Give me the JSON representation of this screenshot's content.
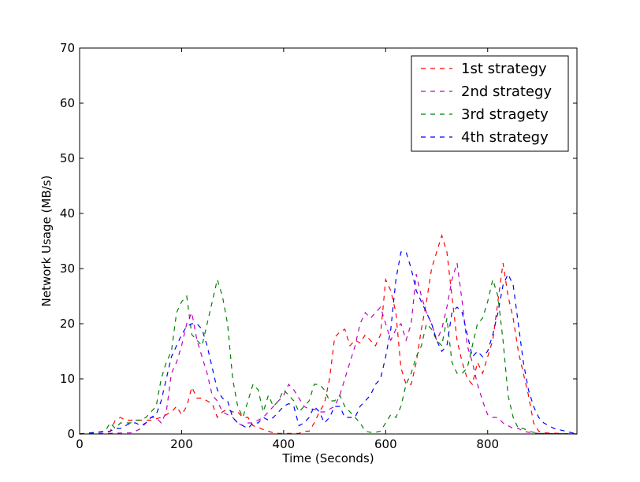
{
  "chart_data": {
    "type": "line",
    "xlabel": "Time (Seconds)",
    "ylabel": "Network Usage (MB/s)",
    "xlim": [
      0,
      975
    ],
    "ylim": [
      0,
      70
    ],
    "xticks": [
      0,
      200,
      400,
      600,
      800
    ],
    "yticks": [
      0,
      10,
      20,
      30,
      40,
      50,
      60,
      70
    ],
    "grid": false,
    "legend_position": "top-right",
    "line_style": "dashed",
    "series": [
      {
        "name": "1st strategy",
        "color": "#ff0000",
        "x": [
          0,
          60,
          70,
          80,
          90,
          100,
          120,
          140,
          160,
          180,
          190,
          200,
          210,
          220,
          230,
          240,
          250,
          260,
          270,
          280,
          290,
          300,
          310,
          320,
          330,
          340,
          350,
          360,
          370,
          380,
          390,
          400,
          410,
          420,
          430,
          440,
          450,
          460,
          470,
          480,
          490,
          500,
          510,
          520,
          530,
          540,
          550,
          560,
          570,
          580,
          590,
          600,
          610,
          620,
          630,
          640,
          650,
          660,
          670,
          680,
          690,
          700,
          710,
          720,
          730,
          740,
          750,
          760,
          770,
          780,
          790,
          800,
          810,
          820,
          830,
          840,
          850,
          860,
          870,
          880,
          890,
          900,
          910,
          975
        ],
        "y": [
          0,
          0.5,
          2.5,
          3,
          2.5,
          2.5,
          2.5,
          2.5,
          3,
          4,
          5,
          3.5,
          5,
          8.5,
          6.5,
          6.5,
          6,
          5.5,
          3,
          4,
          4.5,
          4,
          4,
          3,
          3,
          1.5,
          1.2,
          0.8,
          0.5,
          0.2,
          0.1,
          0.1,
          0.1,
          0.1,
          0.1,
          0.5,
          0.5,
          2,
          4,
          5.5,
          10,
          17.5,
          18.5,
          19,
          16,
          17,
          16.5,
          18,
          17,
          16,
          18,
          28,
          26,
          22,
          12,
          9,
          9,
          13,
          19,
          24,
          30,
          33,
          36,
          33,
          25,
          17,
          13,
          10,
          9,
          13,
          11,
          14,
          17,
          24,
          31,
          25,
          21,
          15,
          11,
          7,
          2,
          0.5,
          0.2,
          0
        ]
      },
      {
        "name": "2nd strategy",
        "color": "#bf00bf",
        "x": [
          0,
          100,
          110,
          120,
          130,
          140,
          150,
          160,
          170,
          180,
          190,
          200,
          210,
          220,
          230,
          240,
          250,
          260,
          270,
          280,
          290,
          300,
          310,
          320,
          330,
          340,
          350,
          360,
          370,
          380,
          390,
          400,
          410,
          420,
          430,
          440,
          450,
          460,
          470,
          480,
          490,
          500,
          510,
          520,
          530,
          540,
          550,
          560,
          570,
          580,
          590,
          600,
          610,
          620,
          630,
          640,
          650,
          660,
          670,
          680,
          690,
          700,
          710,
          720,
          730,
          740,
          750,
          760,
          770,
          780,
          790,
          800,
          810,
          820,
          830,
          840,
          850,
          860,
          870,
          880,
          890,
          900,
          975
        ],
        "y": [
          0,
          0.2,
          0.5,
          1,
          2,
          3,
          3,
          2,
          4,
          11,
          13,
          16,
          20,
          22,
          17,
          14,
          11,
          7,
          6,
          4,
          3.5,
          3,
          2,
          1.5,
          2,
          2,
          2.5,
          3,
          4,
          5,
          6,
          7,
          9,
          8,
          6.5,
          5,
          4.5,
          4.5,
          4,
          4,
          4.5,
          5,
          7,
          10,
          13,
          16,
          20,
          22,
          21,
          22,
          23,
          20,
          17,
          19,
          20,
          17,
          20,
          29,
          25,
          22,
          20,
          17,
          19,
          23,
          28,
          31,
          24,
          16,
          13,
          9,
          6,
          3.5,
          3,
          3,
          2,
          1.5,
          1,
          1,
          0.5,
          0.3,
          0.2,
          0.1,
          0
        ]
      },
      {
        "name": "3rd stragety",
        "color": "#007f00",
        "x": [
          0,
          50,
          60,
          70,
          80,
          90,
          100,
          110,
          120,
          130,
          140,
          150,
          160,
          170,
          180,
          190,
          200,
          210,
          220,
          230,
          240,
          250,
          260,
          270,
          280,
          290,
          300,
          310,
          320,
          330,
          340,
          350,
          360,
          370,
          380,
          390,
          400,
          410,
          420,
          430,
          440,
          450,
          460,
          470,
          480,
          490,
          500,
          510,
          520,
          530,
          540,
          550,
          560,
          570,
          580,
          590,
          600,
          610,
          620,
          630,
          640,
          650,
          660,
          670,
          680,
          690,
          700,
          710,
          720,
          730,
          740,
          750,
          760,
          770,
          780,
          790,
          800,
          810,
          820,
          830,
          840,
          850,
          860,
          870,
          880,
          890,
          900,
          975
        ],
        "y": [
          0,
          0.5,
          2,
          1,
          2,
          2,
          2,
          2.5,
          2.5,
          3,
          4,
          5,
          10,
          13,
          15,
          22,
          24,
          25,
          18,
          17,
          16,
          20,
          24,
          28,
          25,
          20,
          10,
          5,
          3,
          6,
          9,
          8,
          4,
          7,
          5,
          6,
          8,
          7,
          6,
          4,
          5,
          6,
          9,
          9,
          8,
          6,
          6,
          7,
          5,
          4,
          3,
          2,
          0.5,
          0.3,
          0.3,
          0.5,
          2,
          3.5,
          3,
          5,
          9,
          11,
          14,
          16,
          20,
          19,
          17,
          16,
          21,
          13,
          11,
          11,
          12,
          16,
          20,
          21,
          24,
          28,
          25,
          17,
          7,
          3,
          1,
          1,
          0.5,
          0.3,
          0.1,
          0
        ]
      },
      {
        "name": "4th strategy",
        "color": "#0000ff",
        "x": [
          0,
          60,
          70,
          80,
          90,
          100,
          110,
          120,
          130,
          140,
          150,
          160,
          170,
          180,
          190,
          200,
          210,
          220,
          230,
          240,
          250,
          260,
          270,
          280,
          290,
          300,
          310,
          320,
          330,
          340,
          350,
          360,
          370,
          380,
          390,
          400,
          410,
          420,
          430,
          440,
          450,
          460,
          470,
          480,
          490,
          500,
          510,
          520,
          530,
          540,
          550,
          560,
          570,
          580,
          590,
          600,
          610,
          620,
          630,
          640,
          650,
          660,
          670,
          680,
          690,
          700,
          710,
          720,
          730,
          740,
          750,
          760,
          770,
          780,
          790,
          800,
          810,
          820,
          830,
          840,
          850,
          860,
          870,
          880,
          890,
          900,
          910,
          920,
          930,
          975
        ],
        "y": [
          0,
          0.5,
          1,
          1,
          1.5,
          2,
          2,
          1.5,
          2,
          3,
          3.5,
          6,
          10,
          14,
          16,
          18,
          19.5,
          20,
          20,
          19,
          16,
          12,
          8,
          6.5,
          6,
          3,
          2,
          1.5,
          1,
          2,
          2,
          3,
          2.5,
          3,
          4,
          5,
          5.5,
          5,
          1.5,
          2,
          3,
          5,
          4,
          2,
          3,
          5,
          5,
          3,
          3,
          3,
          5,
          6,
          7,
          9,
          10,
          14,
          19,
          28,
          33,
          33,
          30,
          26,
          24,
          22,
          20,
          17,
          15,
          16,
          22,
          23,
          22,
          18,
          14,
          15,
          14,
          15,
          18,
          22,
          27,
          29,
          27,
          20,
          13,
          8,
          5,
          3,
          2,
          1.5,
          1,
          0
        ]
      }
    ]
  }
}
